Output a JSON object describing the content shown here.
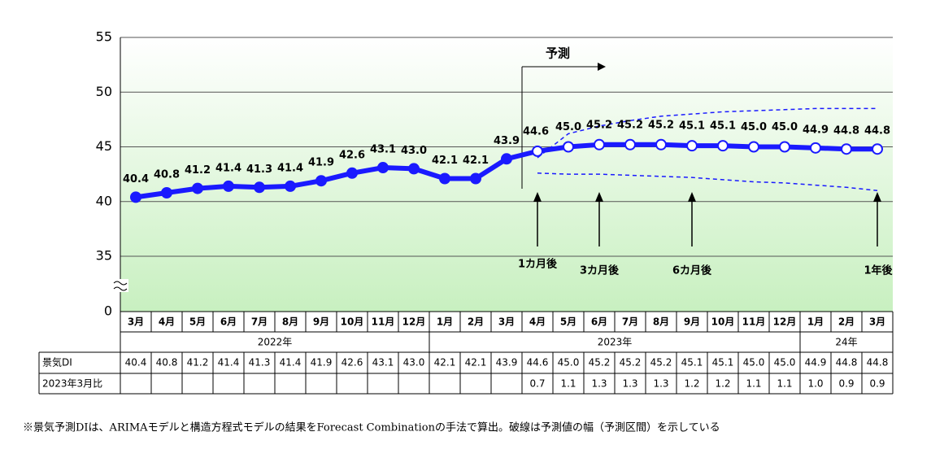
{
  "chart_data": {
    "type": "line",
    "axis_break": true,
    "categories": [
      "3月",
      "4月",
      "5月",
      "6月",
      "7月",
      "8月",
      "9月",
      "10月",
      "11月",
      "12月",
      "1月",
      "2月",
      "3月",
      "4月",
      "5月",
      "6月",
      "7月",
      "8月",
      "9月",
      "10月",
      "11月",
      "12月",
      "1月",
      "2月",
      "3月"
    ],
    "years": [
      "2022年",
      "2022年",
      "2022年",
      "2022年",
      "2022年",
      "2022年",
      "2022年",
      "2022年",
      "2022年",
      "2022年",
      "2023年",
      "2023年",
      "2023年",
      "2023年",
      "2023年",
      "2023年",
      "2023年",
      "2023年",
      "2023年",
      "2023年",
      "2023年",
      "2023年",
      "24年",
      "24年",
      "24年"
    ],
    "series": [
      {
        "name": "景気DI",
        "color": "#1a1aff",
        "values": [
          40.4,
          40.8,
          41.2,
          41.4,
          41.3,
          41.4,
          41.9,
          42.6,
          43.1,
          43.0,
          42.1,
          42.1,
          43.9,
          44.6,
          45.0,
          45.2,
          45.2,
          45.2,
          45.1,
          45.1,
          45.0,
          45.0,
          44.9,
          44.8,
          44.8
        ],
        "value_labels": [
          "40.4",
          "40.8",
          "41.2",
          "41.4",
          "41.3",
          "41.4",
          "41.9",
          "42.6",
          "43.1",
          "43.0",
          "42.1",
          "42.1",
          "43.9",
          "44.6",
          "45.0",
          "45.2",
          "45.2",
          "45.2",
          "45.1",
          "45.1",
          "45.0",
          "45.0",
          "44.9",
          "44.8",
          "44.8"
        ]
      }
    ],
    "bands": [
      {
        "color": "#1a1aff",
        "values": [
          null,
          null,
          null,
          null,
          null,
          null,
          null,
          null,
          null,
          null,
          null,
          null,
          null,
          44.0,
          46.2,
          46.9,
          47.4,
          47.8,
          48.0,
          48.2,
          48.3,
          48.4,
          48.5,
          48.5,
          48.5
        ]
      },
      {
        "color": "#1a1aff",
        "values": [
          null,
          null,
          null,
          null,
          null,
          null,
          null,
          null,
          null,
          null,
          null,
          null,
          null,
          42.6,
          42.5,
          42.5,
          42.4,
          42.3,
          42.2,
          42.0,
          41.8,
          41.7,
          41.5,
          41.3,
          41.0
        ]
      }
    ],
    "ylim": [
      0,
      55
    ],
    "yticks": [
      0,
      35,
      40,
      45,
      50,
      55
    ],
    "grid": true,
    "forecast_label": "予測",
    "annotations": [
      "1カ月後",
      "3カ月後",
      "6カ月後",
      "1年後"
    ],
    "comparison": {
      "label": "2023年3月比",
      "values": [
        null,
        null,
        null,
        null,
        null,
        null,
        null,
        null,
        null,
        null,
        null,
        null,
        null,
        "0.7",
        "1.1",
        "1.3",
        "1.3",
        "1.3",
        "1.2",
        "1.2",
        "1.1",
        "1.1",
        "1.0",
        "0.9",
        "0.9"
      ]
    }
  },
  "footnote": "※景気予測DIは、ARIMAモデルと構造方程式モデルの結果をForecast Combinationの手法で算出。破線は予測値の幅（予測区間）を示している"
}
